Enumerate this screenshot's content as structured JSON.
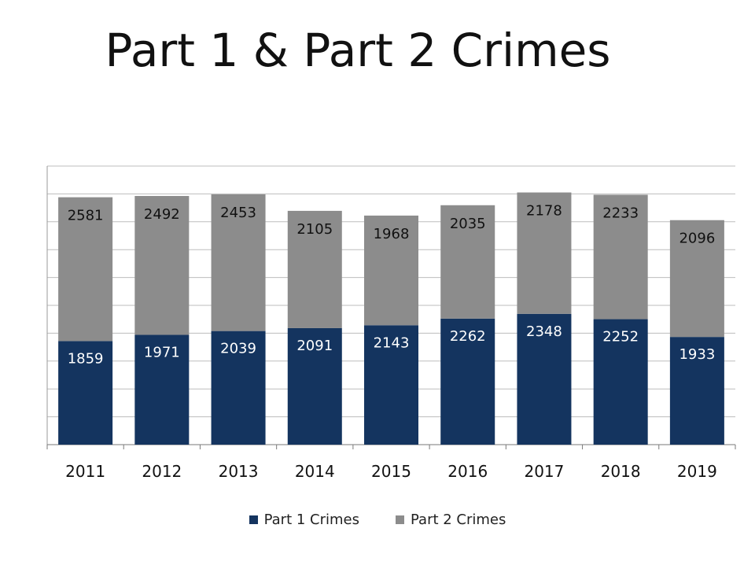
{
  "chart_data": {
    "type": "bar",
    "stacked": true,
    "title": "Part 1 & Part 2 Crimes",
    "xlabel": "",
    "ylabel": "",
    "categories": [
      "2011",
      "2012",
      "2013",
      "2014",
      "2015",
      "2016",
      "2017",
      "2018",
      "2019"
    ],
    "series": [
      {
        "name": "Part 1 Crimes",
        "color": "#14345f",
        "values": [
          1859,
          1971,
          2039,
          2091,
          2143,
          2262,
          2348,
          2252,
          1933
        ]
      },
      {
        "name": "Part 2 Crimes",
        "color": "#8c8c8c",
        "values": [
          2581,
          2492,
          2453,
          2105,
          1968,
          2035,
          2178,
          2233,
          2096
        ]
      }
    ],
    "ylim": [
      0,
      5000
    ],
    "grid": true,
    "legend_position": "bottom"
  }
}
